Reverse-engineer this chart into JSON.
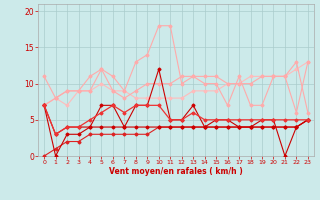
{
  "xlabel": "Vent moyen/en rafales ( km/h )",
  "background_color": "#cceaea",
  "grid_color": "#aacccc",
  "ylim": [
    0,
    21
  ],
  "xlim": [
    -0.5,
    23.5
  ],
  "series": [
    {
      "x": [
        0,
        1,
        2,
        3,
        4,
        5,
        6,
        7,
        8,
        9,
        10,
        11,
        12,
        13,
        14,
        15,
        16,
        17,
        18,
        19,
        20,
        21,
        22,
        23
      ],
      "y": [
        7,
        0,
        3,
        3,
        4,
        7,
        7,
        4,
        7,
        7,
        12,
        5,
        5,
        7,
        4,
        5,
        5,
        4,
        4,
        5,
        5,
        0,
        4,
        5
      ],
      "color": "#cc0000",
      "lw": 0.8,
      "marker": "D",
      "ms": 1.5,
      "zorder": 5
    },
    {
      "x": [
        0,
        1,
        2,
        3,
        4,
        5,
        6,
        7,
        8,
        9,
        10,
        11,
        12,
        13,
        14,
        15,
        16,
        17,
        18,
        19,
        20,
        21,
        22,
        23
      ],
      "y": [
        7,
        3,
        4,
        4,
        4,
        4,
        4,
        4,
        4,
        4,
        4,
        4,
        4,
        4,
        4,
        4,
        4,
        4,
        4,
        4,
        4,
        4,
        4,
        5
      ],
      "color": "#cc0000",
      "lw": 0.8,
      "marker": "D",
      "ms": 1.5,
      "zorder": 5
    },
    {
      "x": [
        0,
        1,
        2,
        3,
        4,
        5,
        6,
        7,
        8,
        9,
        10,
        11,
        12,
        13,
        14,
        15,
        16,
        17,
        18,
        19,
        20,
        21,
        22,
        23
      ],
      "y": [
        0,
        1,
        2,
        2,
        3,
        3,
        3,
        3,
        3,
        3,
        4,
        4,
        4,
        4,
        4,
        4,
        4,
        4,
        4,
        4,
        4,
        4,
        4,
        5
      ],
      "color": "#dd2222",
      "lw": 0.8,
      "marker": "D",
      "ms": 1.5,
      "zorder": 4
    },
    {
      "x": [
        0,
        1,
        2,
        3,
        4,
        5,
        6,
        7,
        8,
        9,
        10,
        11,
        12,
        13,
        14,
        15,
        16,
        17,
        18,
        19,
        20,
        21,
        22,
        23
      ],
      "y": [
        7,
        3,
        4,
        4,
        5,
        6,
        7,
        6,
        7,
        7,
        7,
        5,
        5,
        6,
        5,
        5,
        5,
        5,
        5,
        5,
        5,
        5,
        5,
        5
      ],
      "color": "#ee3333",
      "lw": 0.9,
      "marker": "D",
      "ms": 1.5,
      "zorder": 5
    },
    {
      "x": [
        0,
        1,
        2,
        3,
        4,
        5,
        6,
        7,
        8,
        9,
        10,
        11,
        12,
        13,
        14,
        15,
        16,
        17,
        18,
        19,
        20,
        21,
        22,
        23
      ],
      "y": [
        11,
        8,
        9,
        9,
        9,
        12,
        11,
        9,
        13,
        14,
        18,
        18,
        10,
        11,
        11,
        11,
        10,
        10,
        10,
        11,
        11,
        11,
        6,
        13
      ],
      "color": "#ffaaaa",
      "lw": 0.8,
      "marker": "D",
      "ms": 1.5,
      "zorder": 3
    },
    {
      "x": [
        0,
        1,
        2,
        3,
        4,
        5,
        6,
        7,
        8,
        9,
        10,
        11,
        12,
        13,
        14,
        15,
        16,
        17,
        18,
        19,
        20,
        21,
        22,
        23
      ],
      "y": [
        7,
        8,
        9,
        9,
        11,
        12,
        9,
        8,
        9,
        10,
        10,
        10,
        11,
        11,
        10,
        10,
        7,
        11,
        7,
        7,
        11,
        11,
        13,
        6
      ],
      "color": "#ffaaaa",
      "lw": 0.8,
      "marker": "D",
      "ms": 1.5,
      "zorder": 3
    },
    {
      "x": [
        0,
        1,
        2,
        3,
        4,
        5,
        6,
        7,
        8,
        9,
        10,
        11,
        12,
        13,
        14,
        15,
        16,
        17,
        18,
        19,
        20,
        21,
        22,
        23
      ],
      "y": [
        7,
        8,
        7,
        9,
        9,
        10,
        9,
        9,
        8,
        8,
        8,
        8,
        8,
        9,
        9,
        9,
        10,
        10,
        11,
        11,
        11,
        11,
        12,
        13
      ],
      "color": "#ffbbbb",
      "lw": 0.8,
      "marker": "D",
      "ms": 1.5,
      "zorder": 2
    }
  ],
  "tick_label_color": "#cc0000",
  "yticks": [
    0,
    5,
    10,
    15,
    20
  ],
  "xticks": [
    0,
    1,
    2,
    3,
    4,
    5,
    6,
    7,
    8,
    9,
    10,
    11,
    12,
    13,
    14,
    15,
    16,
    17,
    18,
    19,
    20,
    21,
    22,
    23
  ]
}
